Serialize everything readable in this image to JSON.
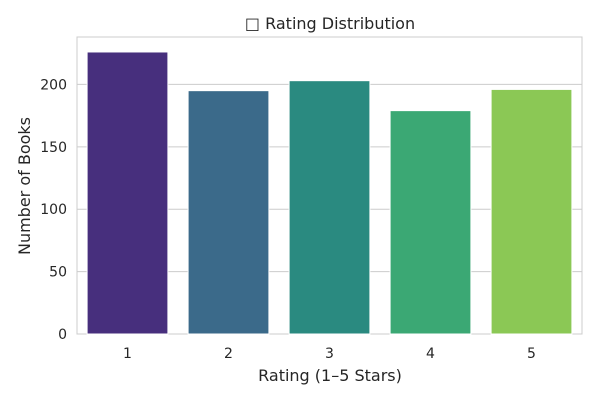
{
  "chart_data": {
    "type": "bar",
    "title": "□ Rating Distribution",
    "xlabel": "Rating (1–5 Stars)",
    "ylabel": "Number of Books",
    "categories": [
      "1",
      "2",
      "3",
      "4",
      "5"
    ],
    "values": [
      226,
      195,
      203,
      179,
      196
    ],
    "ylim": [
      0,
      238
    ],
    "yticks": [
      0,
      50,
      100,
      150,
      200
    ],
    "grid": "horizontal",
    "legend": "none",
    "colors": [
      "#472f7d",
      "#3b6a8a",
      "#2a8a80",
      "#3ba874",
      "#8bc855"
    ]
  }
}
